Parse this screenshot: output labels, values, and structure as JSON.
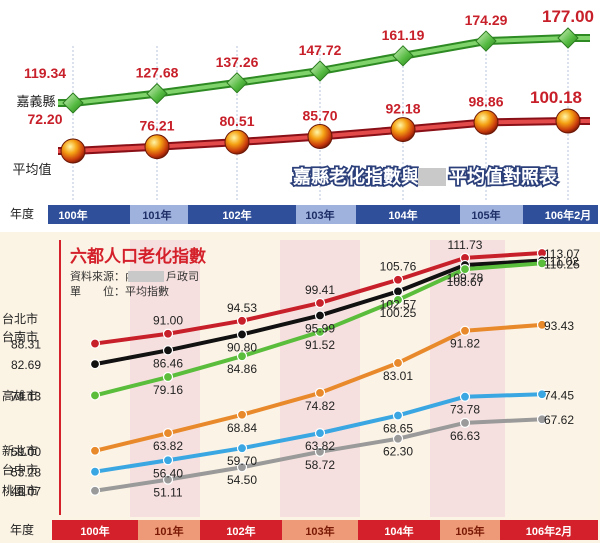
{
  "colors": {
    "top_panel_bg": "#ffffff",
    "bottom_panel_bg": "#fbf3e4",
    "year_bar_dark": "#2f4f9a",
    "year_bar_light": "#9fb2de",
    "year_bar_salmon": "#ee9a78",
    "title_red": "#d4202a",
    "guide_line": "#b9c3dc",
    "band_pink": "#f5dede"
  },
  "chart_data": [
    {
      "type": "line",
      "title": "嘉縣老化指數與",
      "title_masked": "",
      "title_suffix": "平均值對照表",
      "categories": [
        "100年",
        "101年",
        "102年",
        "103年",
        "104年",
        "105年",
        "106年2月"
      ],
      "axis_label": "年度",
      "grid": false,
      "series": [
        {
          "name": "嘉義縣",
          "color": "#4caf50",
          "marker": "diamond",
          "values": [
            119.34,
            127.68,
            137.26,
            147.72,
            161.19,
            174.29,
            177.0
          ],
          "labels": [
            "119.34",
            "127.68",
            "137.26",
            "147.72",
            "161.19",
            "174.29",
            "177.00"
          ]
        },
        {
          "name": "平均值",
          "color": "#c8202a",
          "marker": "ball",
          "values": [
            72.2,
            76.21,
            80.51,
            85.7,
            92.18,
            98.86,
            100.18
          ],
          "labels": [
            "72.20",
            "76.21",
            "80.51",
            "85.70",
            "92.18",
            "98.86",
            "100.18"
          ]
        }
      ]
    },
    {
      "type": "line",
      "title": "六都人口老化指數",
      "source": "資料來源：內",
      "source_suffix": "戶政司",
      "unit": "單　　位：平均指數",
      "categories": [
        "100年",
        "101年",
        "102年",
        "103年",
        "104年",
        "105年",
        "106年2月"
      ],
      "axis_label": "年度",
      "grid": false,
      "series": [
        {
          "name": "台北市",
          "color": "#c8202a",
          "values": [
            88.31,
            91.0,
            94.53,
            99.41,
            105.76,
            111.73,
            113.07
          ],
          "labels": [
            "88.31",
            "91.00",
            "94.53",
            "99.41",
            "105.76",
            "111.73",
            "113.07"
          ]
        },
        {
          "name": "台南市",
          "color": "#111111",
          "values": [
            82.69,
            86.46,
            90.8,
            95.99,
            102.57,
            109.78,
            111.02
          ],
          "labels": [
            "82.69",
            "86.46",
            "90.80",
            "95.99",
            "102.57",
            "109.78",
            "111.02"
          ]
        },
        {
          "name": "高雄市",
          "color": "#5bbd3c",
          "values": [
            74.13,
            79.16,
            84.86,
            91.52,
            100.25,
            108.67,
            110.25
          ],
          "labels": [
            "74.13",
            "79.16",
            "84.86",
            "91.52",
            "100.25",
            "108.67",
            "110.25"
          ]
        },
        {
          "name": "新北市",
          "color": "#e88a2c",
          "values": [
            59.0,
            63.82,
            68.84,
            74.82,
            83.01,
            91.82,
            93.43
          ],
          "labels": [
            "59.00",
            "63.82",
            "68.84",
            "74.82",
            "83.01",
            "91.82",
            "93.43"
          ]
        },
        {
          "name": "台中市",
          "color": "#3aa7e3",
          "values": [
            53.28,
            56.4,
            59.7,
            63.82,
            68.65,
            73.78,
            74.45
          ],
          "labels": [
            "53.28",
            "56.40",
            "59.70",
            "63.82",
            "68.65",
            "73.78",
            "74.45"
          ]
        },
        {
          "name": "桃園市",
          "color": "#9a9a9a",
          "values": [
            48.07,
            51.11,
            54.5,
            58.72,
            62.3,
            66.63,
            67.62
          ],
          "labels": [
            "48.07",
            "51.11",
            "54.50",
            "58.72",
            "62.30",
            "66.63",
            "67.62"
          ]
        }
      ]
    }
  ]
}
